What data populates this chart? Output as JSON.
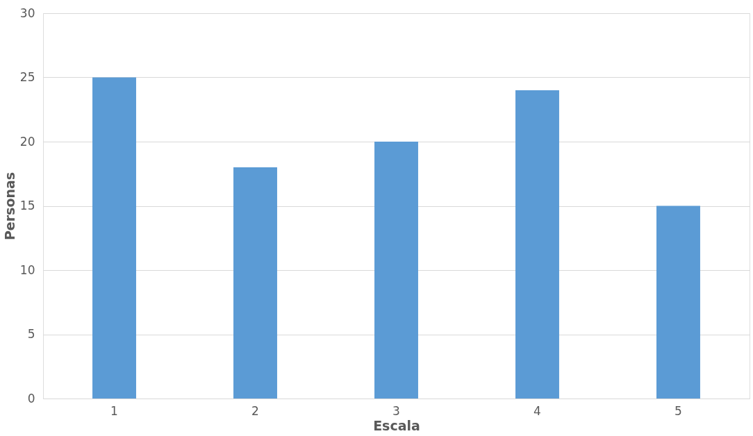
{
  "chart_data": {
    "type": "bar",
    "xlabel": "Escala",
    "ylabel": "Personas",
    "categories": [
      "1",
      "2",
      "3",
      "4",
      "5"
    ],
    "values": [
      25,
      18,
      20,
      24,
      15
    ],
    "color": "#5b9bd5",
    "ylim": [
      0,
      30
    ],
    "yticks": [
      0,
      5,
      10,
      15,
      20,
      25,
      30
    ],
    "grid": "y"
  }
}
